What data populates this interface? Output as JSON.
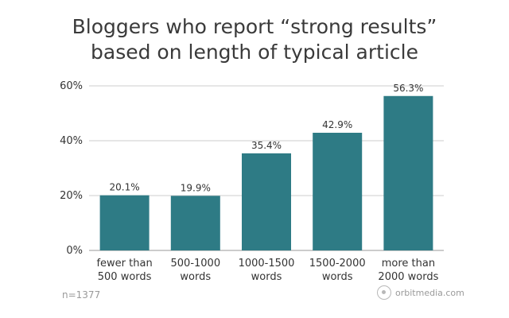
{
  "chart_data": {
    "type": "bar",
    "title_lines": [
      "Bloggers who report “strong results”",
      "based on length of typical article"
    ],
    "categories": [
      [
        "fewer than",
        "500 words"
      ],
      [
        "500-1000",
        "words"
      ],
      [
        "1000-1500",
        "words"
      ],
      [
        "1500-2000",
        "words"
      ],
      [
        "more than",
        "2000 words"
      ]
    ],
    "values": [
      20.1,
      19.9,
      35.4,
      42.9,
      56.3
    ],
    "value_labels": [
      "20.1%",
      "19.9%",
      "35.4%",
      "42.9%",
      "56.3%"
    ],
    "ylim": [
      0,
      60
    ],
    "yticks": [
      0,
      20,
      40,
      60
    ],
    "ytick_labels": [
      "0%",
      "20%",
      "40%",
      "60%"
    ],
    "grid": true,
    "bar_color": "#2e7b85",
    "grid_color": "#cccccc",
    "text_color": "#333333"
  },
  "footer": {
    "sample_size": "n=1377",
    "brand": "orbitmedia.com"
  }
}
